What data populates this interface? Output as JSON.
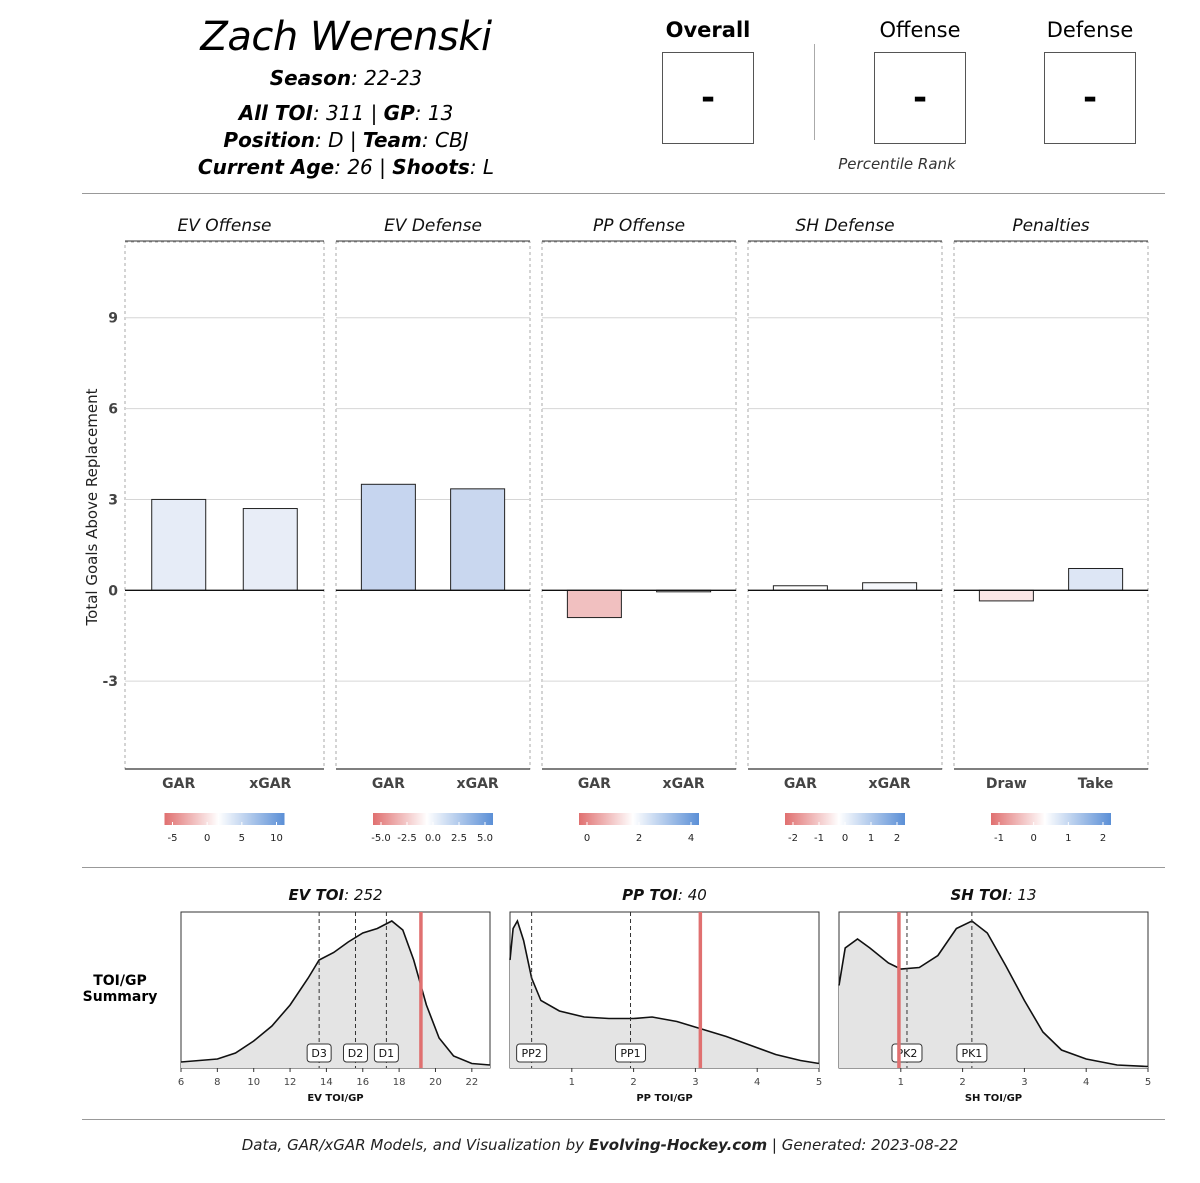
{
  "player": {
    "name": "Zach Werenski",
    "season_label": "Season",
    "season_value": ": 22-23",
    "toi_label": "All TOI",
    "toi_value": ": 311 | ",
    "gp_label": "GP",
    "gp_value": ": 13",
    "position_label": "Position",
    "position_value": ": D | ",
    "team_label": "Team",
    "team_value": ": CBJ",
    "age_label": "Current Age",
    "age_value": ": 26 | ",
    "shoots_label": "Shoots",
    "shoots_value": ": L"
  },
  "percentiles": {
    "overall_label": "Overall",
    "overall_value": "-",
    "offense_label": "Offense",
    "offense_value": "-",
    "defense_label": "Defense",
    "defense_value": "-",
    "caption": "Percentile Rank"
  },
  "footer": {
    "prefix": "Data, GAR/xGAR Models, and Visualization by ",
    "brand": "Evolving-Hockey.com",
    "suffix": " | Generated: 2023-08-22"
  },
  "summary_label_line1": "TOI/GP",
  "summary_label_line2": "Summary",
  "chart_data": [
    {
      "type": "bar",
      "ylabel": "Total Goals Above Replacement",
      "ylim": [
        -5.9,
        11.5
      ],
      "yticks": [
        -3,
        0,
        3,
        6,
        9
      ],
      "panels": [
        {
          "title": "EV Offense",
          "categories": [
            "GAR",
            "xGAR"
          ],
          "values": [
            3.0,
            2.7
          ],
          "colors": [
            "#e6ecf7",
            "#e8edf7"
          ],
          "legend_ticks": [
            "-5",
            "0",
            "5",
            "10"
          ]
        },
        {
          "title": "EV Defense",
          "categories": [
            "GAR",
            "xGAR"
          ],
          "values": [
            3.5,
            3.35
          ],
          "colors": [
            "#c6d5ef",
            "#c9d7ef"
          ],
          "legend_ticks": [
            "-5.0",
            "-2.5",
            "0.0",
            "2.5",
            "5.0"
          ]
        },
        {
          "title": "PP Offense",
          "categories": [
            "GAR",
            "xGAR"
          ],
          "values": [
            -0.9,
            -0.05
          ],
          "colors": [
            "#f1c0c0",
            "#ffffff"
          ],
          "legend_ticks": [
            "0",
            "2",
            "4"
          ]
        },
        {
          "title": "SH Defense",
          "categories": [
            "GAR",
            "xGAR"
          ],
          "values": [
            0.15,
            0.25
          ],
          "colors": [
            "#ffffff",
            "#f6f8fc"
          ],
          "legend_ticks": [
            "-2",
            "-1",
            "0",
            "1",
            "2"
          ]
        },
        {
          "title": "Penalties",
          "categories": [
            "Draw",
            "Take"
          ],
          "values": [
            -0.35,
            0.72
          ],
          "colors": [
            "#fbe6e6",
            "#dde6f5"
          ],
          "legend_ticks": [
            "-1",
            "0",
            "1",
            "2"
          ]
        }
      ],
      "legend_colors": {
        "low": "#e07070",
        "mid": "#ffffff",
        "high": "#5b8fd6"
      }
    },
    {
      "type": "area",
      "panels": [
        {
          "title": "EV TOI",
          "title_value": ": 252",
          "xlabel": "EV TOI/GP",
          "xlim": [
            6,
            23
          ],
          "x_ticks": [
            6,
            8,
            10,
            12,
            14,
            16,
            18,
            20,
            22
          ],
          "player_value": 19.2,
          "markers": [
            {
              "label": "D3",
              "x": 13.6
            },
            {
              "label": "D2",
              "x": 15.6
            },
            {
              "label": "D1",
              "x": 17.3
            }
          ],
          "density": [
            [
              6,
              0.04
            ],
            [
              7,
              0.05
            ],
            [
              8,
              0.06
            ],
            [
              9,
              0.1
            ],
            [
              10,
              0.18
            ],
            [
              11,
              0.28
            ],
            [
              12,
              0.42
            ],
            [
              13,
              0.6
            ],
            [
              13.6,
              0.72
            ],
            [
              14.4,
              0.77
            ],
            [
              15.2,
              0.84
            ],
            [
              16,
              0.9
            ],
            [
              16.8,
              0.93
            ],
            [
              17.6,
              0.98
            ],
            [
              18.2,
              0.92
            ],
            [
              18.8,
              0.72
            ],
            [
              19.5,
              0.42
            ],
            [
              20.2,
              0.2
            ],
            [
              21,
              0.08
            ],
            [
              22,
              0.03
            ],
            [
              23,
              0.02
            ]
          ]
        },
        {
          "title": "PP TOI",
          "title_value": ": 40",
          "xlabel": "PP TOI/GP",
          "xlim": [
            0,
            5
          ],
          "x_ticks": [
            1,
            2,
            3,
            4,
            5
          ],
          "player_value": 3.08,
          "markers": [
            {
              "label": "PP2",
              "x": 0.35
            },
            {
              "label": "PP1",
              "x": 1.95
            }
          ],
          "density": [
            [
              0,
              0.72
            ],
            [
              0.05,
              0.93
            ],
            [
              0.12,
              0.98
            ],
            [
              0.22,
              0.85
            ],
            [
              0.35,
              0.6
            ],
            [
              0.5,
              0.45
            ],
            [
              0.8,
              0.38
            ],
            [
              1.2,
              0.34
            ],
            [
              1.6,
              0.33
            ],
            [
              2.0,
              0.33
            ],
            [
              2.3,
              0.34
            ],
            [
              2.7,
              0.31
            ],
            [
              3.1,
              0.26
            ],
            [
              3.5,
              0.21
            ],
            [
              3.9,
              0.15
            ],
            [
              4.3,
              0.09
            ],
            [
              4.7,
              0.05
            ],
            [
              5,
              0.03
            ]
          ]
        },
        {
          "title": "SH TOI",
          "title_value": ": 13",
          "xlabel": "SH TOI/GP",
          "xlim": [
            0,
            5
          ],
          "x_ticks": [
            1,
            2,
            3,
            4,
            5
          ],
          "player_value": 0.97,
          "markers": [
            {
              "label": "PK2",
              "x": 1.1
            },
            {
              "label": "PK1",
              "x": 2.15
            }
          ],
          "density": [
            [
              0,
              0.55
            ],
            [
              0.1,
              0.8
            ],
            [
              0.3,
              0.86
            ],
            [
              0.5,
              0.8
            ],
            [
              0.8,
              0.7
            ],
            [
              1.0,
              0.66
            ],
            [
              1.3,
              0.67
            ],
            [
              1.6,
              0.75
            ],
            [
              1.9,
              0.93
            ],
            [
              2.15,
              0.98
            ],
            [
              2.4,
              0.9
            ],
            [
              2.7,
              0.68
            ],
            [
              3.0,
              0.45
            ],
            [
              3.3,
              0.24
            ],
            [
              3.6,
              0.12
            ],
            [
              4.0,
              0.06
            ],
            [
              4.5,
              0.02
            ],
            [
              5,
              0.01
            ]
          ]
        }
      ]
    }
  ]
}
